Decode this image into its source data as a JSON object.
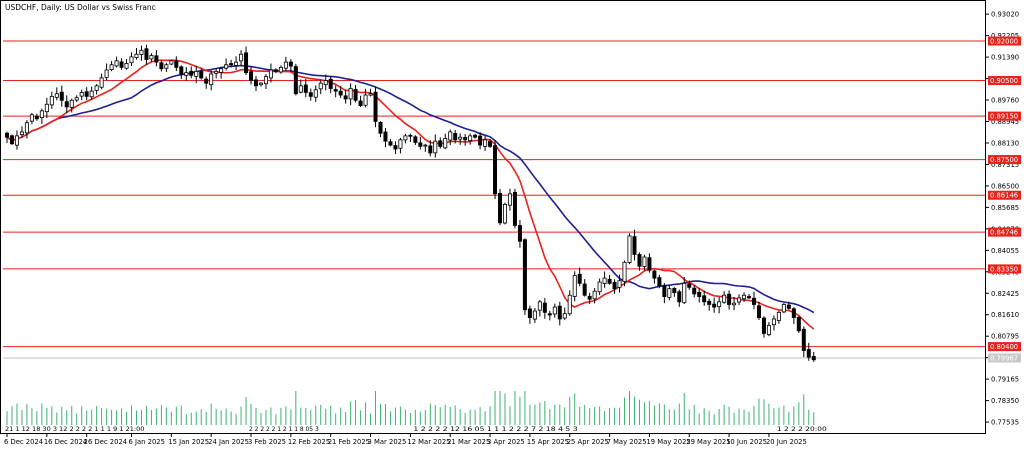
{
  "chart_data": {
    "type": "candlestick",
    "title": "USDCHF, Daily:  US Dollar vs Swiss Franc",
    "y_ticks": [
      "0.93020",
      "0.92205",
      "0.91390",
      "0.90575",
      "0.89760",
      "0.88945",
      "0.88130",
      "0.87315",
      "0.86500",
      "0.85685",
      "0.84870",
      "0.84055",
      "0.83240",
      "0.82425",
      "0.81610",
      "0.80795",
      "0.79980",
      "0.79165",
      "0.78350",
      "0.77535"
    ],
    "ylim": [
      0.7712,
      0.9352
    ],
    "x_ticks": [
      "6 Dec 2024",
      "16 Dec 2024",
      "26 Dec 2024",
      "6 Jan 2025",
      "15 Jan 2025",
      "24 Jan 2025",
      "3 Feb 2025",
      "12 Feb 2025",
      "21 Feb 2025",
      "3 Mar 2025",
      "12 Mar 2025",
      "21 Mar 2025",
      "3 Apr 2025",
      "15 Apr 2025",
      "25 Apr 2025",
      "7 May 2025",
      "19 May 2025",
      "29 May 2025",
      "10 Jun 2025",
      "20 Jun 2025"
    ],
    "x_tick_index": [
      0,
      8,
      16,
      25,
      33,
      41,
      49,
      57,
      65,
      73,
      81,
      89,
      97,
      105,
      113,
      121,
      129,
      137,
      145,
      153
    ],
    "levels": [
      {
        "value": 0.92,
        "label": "0.92000"
      },
      {
        "value": 0.905,
        "label": "0.90500"
      },
      {
        "value": 0.8915,
        "label": "0.89150"
      },
      {
        "value": 0.875,
        "label": "0.87500"
      },
      {
        "value": 0.86146,
        "label": "0.86146"
      },
      {
        "value": 0.84746,
        "label": "0.84746"
      },
      {
        "value": 0.8335,
        "label": "0.83350"
      },
      {
        "value": 0.804,
        "label": "0.80400"
      }
    ],
    "current_price": {
      "value": 0.79967,
      "label": "0.79967"
    },
    "grid": false,
    "colors": {
      "up": "#ffffff",
      "down": "#000000",
      "fast_ma": "#e8221c",
      "slow_ma": "#1f1f8f",
      "level": "#e8221c",
      "volume": "#3cb371"
    },
    "closes": [
      0.8835,
      0.881,
      0.884,
      0.8855,
      0.889,
      0.892,
      0.8905,
      0.8935,
      0.896,
      0.899,
      0.9,
      0.8975,
      0.895,
      0.8975,
      0.8985,
      0.9005,
      0.899,
      0.901,
      0.903,
      0.906,
      0.909,
      0.911,
      0.9125,
      0.91,
      0.9115,
      0.914,
      0.915,
      0.9165,
      0.913,
      0.9145,
      0.912,
      0.9095,
      0.911,
      0.9125,
      0.91,
      0.9075,
      0.908,
      0.907,
      0.9085,
      0.906,
      0.904,
      0.9075,
      0.9085,
      0.9095,
      0.911,
      0.911,
      0.912,
      0.915,
      0.908,
      0.905,
      0.903,
      0.904,
      0.9065,
      0.909,
      0.9085,
      0.91,
      0.912,
      0.9105,
      0.9,
      0.903,
      0.9005,
      0.899,
      0.9015,
      0.904,
      0.905,
      0.902,
      0.901,
      0.8995,
      0.898,
      0.902,
      0.8975,
      0.8955,
      0.8995,
      0.9,
      0.8895,
      0.885,
      0.882,
      0.8805,
      0.879,
      0.8825,
      0.884,
      0.884,
      0.8815,
      0.88,
      0.8805,
      0.8775,
      0.882,
      0.88,
      0.883,
      0.8855,
      0.8825,
      0.8835,
      0.8825,
      0.884,
      0.8835,
      0.8805,
      0.8825,
      0.88,
      0.862,
      0.851,
      0.858,
      0.862,
      0.85,
      0.844,
      0.818,
      0.815,
      0.8175,
      0.821,
      0.817,
      0.816,
      0.819,
      0.8145,
      0.8165,
      0.8235,
      0.831,
      0.828,
      0.8235,
      0.822,
      0.825,
      0.8285,
      0.83,
      0.828,
      0.826,
      0.829,
      0.836,
      0.846,
      0.839,
      0.8345,
      0.838,
      0.833,
      0.83,
      0.827,
      0.823,
      0.826,
      0.8245,
      0.821,
      0.828,
      0.8265,
      0.824,
      0.823,
      0.821,
      0.82,
      0.819,
      0.821,
      0.8235,
      0.82,
      0.8205,
      0.8225,
      0.8235,
      0.8225,
      0.82,
      0.815,
      0.809,
      0.812,
      0.8145,
      0.817,
      0.82,
      0.8185,
      0.815,
      0.81,
      0.8025,
      0.8,
      0.799
    ],
    "volume_label_groups": [
      {
        "text": "21 1 12 18 30 3 12 2 2 2 2 1 1 1 9 1 21:00",
        "from": 0,
        "to": 28
      },
      {
        "text": "2 2 2 2 2 1 2 1 1 8 05 3",
        "from": 49,
        "to": 63
      },
      {
        "text": "1 2 2 2 2 12 16 05 1 1 1 2 2 2 7 2 18 4 5 3",
        "from": 82,
        "to": 115
      },
      {
        "text": "1 2 2 2 20:00",
        "from": 155,
        "to": 165
      }
    ]
  }
}
